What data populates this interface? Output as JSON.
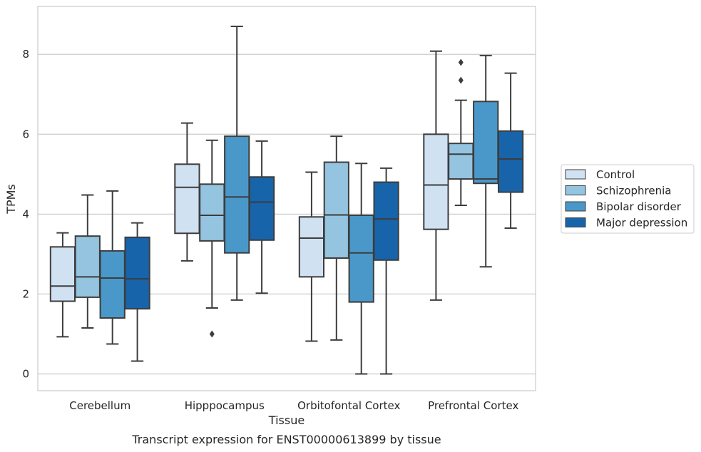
{
  "chart_data": {
    "type": "boxplot",
    "xlabel": "Tissue",
    "ylabel": "TPMs",
    "caption": "Transcript expression for ENST00000613899 by tissue",
    "ylim": [
      -0.42,
      9.2
    ],
    "yticks": [
      0,
      2,
      4,
      6,
      8
    ],
    "grid": "horizontal",
    "legend_position": "right",
    "categories": [
      "Cerebellum",
      "Hipppocampus",
      "Orbitofontal Cortex",
      "Prefrontal Cortex"
    ],
    "series": [
      {
        "name": "Control",
        "color": "#d0e1f2",
        "boxes": [
          {
            "whislo": 0.93,
            "q1": 1.82,
            "med": 2.2,
            "q3": 3.18,
            "whishi": 3.53,
            "fliers": []
          },
          {
            "whislo": 2.83,
            "q1": 3.52,
            "med": 4.67,
            "q3": 5.25,
            "whishi": 6.28,
            "fliers": []
          },
          {
            "whislo": 0.82,
            "q1": 2.43,
            "med": 3.4,
            "q3": 3.93,
            "whishi": 5.05,
            "fliers": []
          },
          {
            "whislo": 1.85,
            "q1": 3.62,
            "med": 4.73,
            "q3": 6.0,
            "whishi": 8.08,
            "fliers": []
          }
        ]
      },
      {
        "name": "Schizophrenia",
        "color": "#94c4df",
        "boxes": [
          {
            "whislo": 1.15,
            "q1": 1.92,
            "med": 2.43,
            "q3": 3.45,
            "whishi": 4.48,
            "fliers": []
          },
          {
            "whislo": 1.65,
            "q1": 3.33,
            "med": 3.97,
            "q3": 4.75,
            "whishi": 5.85,
            "fliers": [
              1.0
            ]
          },
          {
            "whislo": 0.85,
            "q1": 2.9,
            "med": 3.98,
            "q3": 5.3,
            "whishi": 5.95,
            "fliers": []
          },
          {
            "whislo": 4.22,
            "q1": 4.88,
            "med": 5.5,
            "q3": 5.77,
            "whishi": 6.85,
            "fliers": [
              7.35,
              7.8
            ]
          }
        ]
      },
      {
        "name": "Bipolar disorder",
        "color": "#4a98c9",
        "boxes": [
          {
            "whislo": 0.75,
            "q1": 1.4,
            "med": 2.4,
            "q3": 3.08,
            "whishi": 4.58,
            "fliers": []
          },
          {
            "whislo": 1.85,
            "q1": 3.03,
            "med": 4.43,
            "q3": 5.95,
            "whishi": 8.7,
            "fliers": []
          },
          {
            "whislo": 0.0,
            "q1": 1.8,
            "med": 3.03,
            "q3": 3.97,
            "whishi": 5.27,
            "fliers": []
          },
          {
            "whislo": 2.68,
            "q1": 4.77,
            "med": 4.88,
            "q3": 6.82,
            "whishi": 7.97,
            "fliers": []
          }
        ]
      },
      {
        "name": "Major depression",
        "color": "#1764ab",
        "boxes": [
          {
            "whislo": 0.32,
            "q1": 1.63,
            "med": 2.38,
            "q3": 3.42,
            "whishi": 3.78,
            "fliers": []
          },
          {
            "whislo": 2.02,
            "q1": 3.35,
            "med": 4.3,
            "q3": 4.93,
            "whishi": 5.83,
            "fliers": []
          },
          {
            "whislo": 0.0,
            "q1": 2.85,
            "med": 3.88,
            "q3": 4.8,
            "whishi": 5.15,
            "fliers": []
          },
          {
            "whislo": 3.65,
            "q1": 4.55,
            "med": 5.38,
            "q3": 6.08,
            "whishi": 7.53,
            "fliers": []
          }
        ]
      }
    ]
  }
}
